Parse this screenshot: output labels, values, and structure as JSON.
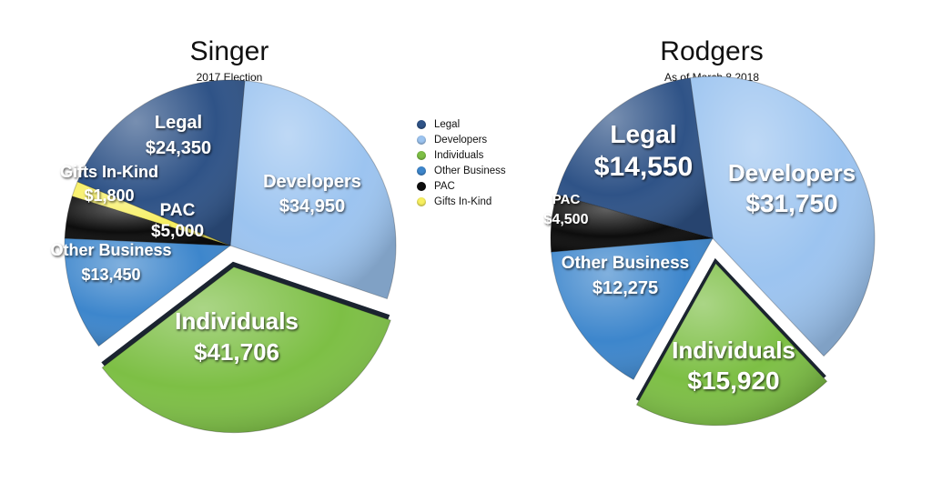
{
  "colors": {
    "Legal": "#2f5387",
    "Developers": "#9cc4f0",
    "Individuals": "#7dbf45",
    "Other Business": "#3d86cc",
    "PAC": "#0d0d0d",
    "Gifts In-Kind": "#f7ef5f"
  },
  "legend": [
    "Legal",
    "Developers",
    "Individuals",
    "Other Business",
    "PAC",
    "Gifts In-Kind"
  ],
  "chart_data": [
    {
      "type": "pie",
      "title": "Singer",
      "subtitle": "2017 Election",
      "slices": [
        {
          "label": "Developers",
          "value_label": "$34,950",
          "value": 34950
        },
        {
          "label": "Individuals",
          "value_label": "$41,706",
          "value": 41706,
          "exploded": true
        },
        {
          "label": "Other Business",
          "value_label": "$13,450",
          "value": 13450
        },
        {
          "label": "PAC",
          "value_label": "$5,000",
          "value": 5000
        },
        {
          "label": "Gifts In-Kind",
          "value_label": "$1,800",
          "value": 1800
        },
        {
          "label": "Legal",
          "value_label": "$24,350",
          "value": 24350
        }
      ]
    },
    {
      "type": "pie",
      "title": "Rodgers",
      "subtitle": "As of March 8 2018",
      "slices": [
        {
          "label": "Developers",
          "value_label": "$31,750",
          "value": 31750
        },
        {
          "label": "Individuals",
          "value_label": "$15,920",
          "value": 15920,
          "exploded": true
        },
        {
          "label": "Other Business",
          "value_label": "$12,275",
          "value": 12275
        },
        {
          "label": "PAC",
          "value_label": "$4,500",
          "value": 4500
        },
        {
          "label": "Legal",
          "value_label": "$14,550",
          "value": 14550
        }
      ]
    }
  ]
}
